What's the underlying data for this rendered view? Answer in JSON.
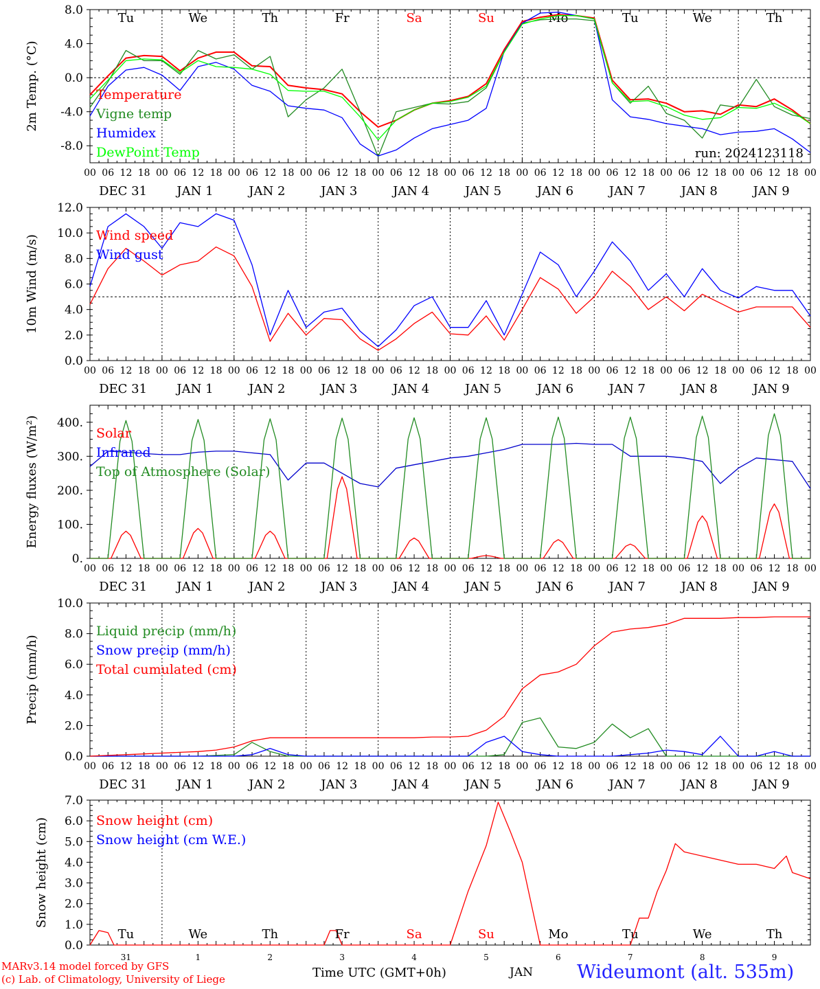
{
  "chart_data": [
    {
      "type": "line",
      "ylabel": "2m Temp. (°C)",
      "ylim": [
        -10,
        8
      ],
      "yticks": [
        8,
        4,
        0,
        -4,
        -8
      ],
      "ytick_labels": [
        "8.0",
        "4.0",
        "0.0",
        "-4.0",
        "-8.0"
      ],
      "zero_line": 0,
      "day_names": [
        "Tu",
        "We",
        "Th",
        "Fr",
        "Sa",
        "Su",
        "Mo",
        "Tu",
        "We",
        "Th"
      ],
      "weekend_color": "#ff0000",
      "annotation": "run: 2024123118",
      "x_hours": [
        0,
        6,
        12,
        18,
        24,
        30,
        36,
        42,
        48,
        54,
        60,
        66,
        72,
        78,
        84,
        90,
        96,
        102,
        108,
        114,
        120,
        126,
        132,
        138,
        144,
        150,
        156,
        162,
        168,
        174,
        180,
        186,
        192,
        198,
        204,
        210,
        216,
        222,
        228,
        234,
        240
      ],
      "series": [
        {
          "name": "Temperature",
          "color": "#ff0000",
          "values": [
            -2,
            0.2,
            2.3,
            2.6,
            2.5,
            0.8,
            2.3,
            3.0,
            3.0,
            1.4,
            1.3,
            -0.9,
            -1.2,
            -1.4,
            -1.9,
            -4.0,
            -5.8,
            -5.0,
            -3.8,
            -3.0,
            -2.7,
            -2.2,
            -0.7,
            3.3,
            6.6,
            7.1,
            7.4,
            7.3,
            7.0,
            -0.3,
            -2.6,
            -2.5,
            -3.0,
            -4.0,
            -3.9,
            -4.3,
            -3.2,
            -3.4,
            -2.5,
            -3.8,
            -5.4
          ]
        },
        {
          "name": "Vigne temp",
          "color": "#228b22",
          "values": [
            -3.5,
            -0.5,
            3.2,
            2.0,
            2.0,
            0.4,
            3.2,
            2.2,
            2.7,
            1.0,
            2.5,
            -4.6,
            -2.6,
            -1.2,
            1.0,
            -4.0,
            -9.3,
            -4.0,
            -3.5,
            -3.0,
            -3.1,
            -2.8,
            -1.2,
            3.0,
            6.4,
            6.8,
            6.9,
            6.9,
            6.7,
            -0.6,
            -3.0,
            -1.0,
            -4.2,
            -5.0,
            -7.1,
            -3.2,
            -3.5,
            -0.2,
            -3.4,
            -4.4,
            -4.8
          ]
        },
        {
          "name": "Humidex",
          "color": "#0000ff",
          "values": [
            -4.5,
            -1.0,
            0.9,
            1.2,
            0.3,
            -1.5,
            1.3,
            1.8,
            1.0,
            -0.9,
            -1.6,
            -3.3,
            -3.6,
            -3.8,
            -4.7,
            -7.8,
            -9.2,
            -8.5,
            -7.1,
            -6.0,
            -5.5,
            -5.0,
            -3.6,
            3.1,
            6.4,
            7.6,
            7.7,
            7.3,
            6.9,
            -2.6,
            -4.6,
            -4.9,
            -5.4,
            -5.7,
            -6.0,
            -6.7,
            -6.4,
            -6.3,
            -6.0,
            -7.2,
            -8.8
          ]
        },
        {
          "name": "DewPoint Temp",
          "color": "#00ff00",
          "values": [
            -2.5,
            -0.3,
            2.0,
            2.2,
            2.1,
            0.6,
            2.0,
            1.3,
            1.2,
            1.0,
            0.4,
            -1.5,
            -1.6,
            -1.6,
            -2.3,
            -4.6,
            -7.3,
            -5.0,
            -3.8,
            -3.0,
            -2.8,
            -2.3,
            -1.0,
            3.0,
            6.3,
            6.9,
            7.3,
            7.3,
            6.9,
            -0.6,
            -2.8,
            -2.7,
            -3.4,
            -4.4,
            -4.9,
            -4.7,
            -3.5,
            -3.6,
            -3.0,
            -4.0,
            -5.4
          ]
        }
      ]
    },
    {
      "type": "line",
      "ylabel": "10m Wind (m/s)",
      "ylim": [
        0,
        12
      ],
      "yticks": [
        12,
        10,
        8,
        6,
        4,
        2,
        0
      ],
      "ytick_labels": [
        "12.0",
        "10.0",
        "8.0",
        "6.0",
        "4.0",
        "2.0",
        "0.0"
      ],
      "ref_line": 5,
      "x_hours": [
        0,
        6,
        12,
        18,
        24,
        30,
        36,
        42,
        48,
        54,
        60,
        66,
        72,
        78,
        84,
        90,
        96,
        102,
        108,
        114,
        120,
        126,
        132,
        138,
        144,
        150,
        156,
        162,
        168,
        174,
        180,
        186,
        192,
        198,
        204,
        210,
        216,
        222,
        228,
        234,
        240
      ],
      "series": [
        {
          "name": "Wind speed",
          "color": "#ff0000",
          "values": [
            4.4,
            7.2,
            8.8,
            7.8,
            6.7,
            7.5,
            7.8,
            8.9,
            8.2,
            5.8,
            1.5,
            3.7,
            2.0,
            3.3,
            3.2,
            1.7,
            0.8,
            1.7,
            2.9,
            3.8,
            2.1,
            2.0,
            3.5,
            1.6,
            4.0,
            6.5,
            5.6,
            3.7,
            5.0,
            7.0,
            5.8,
            4.0,
            5.0,
            3.9,
            5.2,
            4.5,
            3.8,
            4.2,
            4.2,
            4.2,
            2.6
          ]
        },
        {
          "name": "Wind gust",
          "color": "#0000ff",
          "values": [
            5.8,
            10.5,
            11.5,
            10.5,
            8.8,
            10.8,
            10.5,
            11.5,
            11.0,
            7.5,
            2.0,
            5.5,
            2.6,
            3.8,
            4.1,
            2.3,
            1.1,
            2.4,
            4.3,
            5.0,
            2.6,
            2.6,
            4.7,
            2.0,
            5.2,
            8.5,
            7.5,
            5.0,
            7.0,
            9.3,
            7.8,
            5.5,
            6.8,
            5.0,
            7.2,
            5.5,
            4.9,
            5.8,
            5.5,
            5.5,
            3.5
          ]
        }
      ]
    },
    {
      "type": "line",
      "ylabel": "Energy fluxes (W/m²)",
      "ylim": [
        0,
        450
      ],
      "yticks": [
        400,
        300,
        200,
        100,
        0
      ],
      "ytick_labels": [
        "400.",
        "300.",
        "200.",
        "100.",
        "0."
      ],
      "solar_peaks": [
        80,
        88,
        80,
        240,
        60,
        8,
        55,
        42,
        125,
        160
      ],
      "toa_peaks": [
        405,
        408,
        410,
        412,
        413,
        413,
        415,
        415,
        418,
        425
      ],
      "series": [
        {
          "name": "Solar",
          "color": "#ff0000"
        },
        {
          "name": "Infrared",
          "color": "#0000cc",
          "x_hours": [
            0,
            6,
            12,
            18,
            24,
            30,
            36,
            42,
            48,
            54,
            60,
            66,
            72,
            78,
            84,
            90,
            96,
            102,
            108,
            114,
            120,
            126,
            132,
            138,
            144,
            150,
            156,
            162,
            168,
            174,
            180,
            186,
            192,
            198,
            204,
            210,
            216,
            222,
            228,
            234,
            240
          ],
          "values": [
            270,
            315,
            312,
            308,
            305,
            305,
            312,
            315,
            315,
            310,
            305,
            230,
            280,
            280,
            250,
            220,
            210,
            265,
            275,
            285,
            295,
            300,
            310,
            320,
            335,
            335,
            335,
            338,
            335,
            335,
            300,
            300,
            300,
            295,
            285,
            220,
            265,
            295,
            290,
            285,
            205
          ]
        },
        {
          "name": "Top of Atmosphere (Solar)",
          "color": "#228b22"
        }
      ]
    },
    {
      "type": "line",
      "ylabel": "Precip (mm/h)",
      "ylim": [
        0,
        10
      ],
      "yticks": [
        10,
        8,
        6,
        4,
        2,
        0
      ],
      "ytick_labels": [
        "10.0",
        "8.0",
        "6.0",
        "4.0",
        "2.0",
        "0.0"
      ],
      "x_hours": [
        0,
        6,
        12,
        18,
        24,
        30,
        36,
        42,
        48,
        54,
        60,
        66,
        72,
        78,
        84,
        90,
        96,
        102,
        108,
        114,
        120,
        126,
        132,
        138,
        144,
        150,
        156,
        162,
        168,
        174,
        180,
        186,
        192,
        198,
        204,
        210,
        216,
        222,
        228,
        234,
        240
      ],
      "series": [
        {
          "name": "Liquid precip (mm/h)",
          "color": "#228b22",
          "values": [
            0,
            0,
            0,
            0,
            0,
            0,
            0,
            0.05,
            0.1,
            0.9,
            0.3,
            0,
            0,
            0,
            0,
            0,
            0,
            0,
            0,
            0,
            0,
            0,
            0,
            0.1,
            2.2,
            2.5,
            0.6,
            0.5,
            0.9,
            2.1,
            1.2,
            1.8,
            0,
            0,
            0,
            0,
            0,
            0,
            0,
            0,
            0
          ]
        },
        {
          "name": "Snow precip (mm/h)",
          "color": "#0000ff",
          "values": [
            0,
            0,
            0,
            0,
            0,
            0,
            0,
            0,
            0,
            0.1,
            0.5,
            0.1,
            0,
            0,
            0,
            0,
            0,
            0,
            0,
            0,
            0,
            0,
            0.9,
            1.3,
            0.3,
            0.1,
            0,
            0,
            0,
            0,
            0.1,
            0.2,
            0.4,
            0.3,
            0.1,
            1.3,
            0,
            0,
            0.3,
            0,
            0
          ]
        },
        {
          "name": "Total cumulated (cm)",
          "color": "#ff0000",
          "values": [
            0,
            0.05,
            0.1,
            0.15,
            0.2,
            0.25,
            0.3,
            0.4,
            0.6,
            1.0,
            1.2,
            1.2,
            1.2,
            1.2,
            1.2,
            1.2,
            1.2,
            1.2,
            1.2,
            1.25,
            1.25,
            1.3,
            1.7,
            2.6,
            4.4,
            5.3,
            5.5,
            6.0,
            7.2,
            8.1,
            8.3,
            8.4,
            8.6,
            9.0,
            9.0,
            9.0,
            9.05,
            9.05,
            9.1,
            9.1,
            9.1
          ]
        }
      ]
    },
    {
      "type": "line",
      "ylabel": "Snow height (cm)",
      "ylim": [
        0,
        7
      ],
      "yticks": [
        7,
        6,
        5,
        4,
        3,
        2,
        1,
        0
      ],
      "ytick_labels": [
        "7.0",
        "6.0",
        "5.0",
        "4.0",
        "3.0",
        "2.0",
        "1.0",
        "0.0"
      ],
      "x_hours": [
        0,
        3,
        6,
        8,
        12,
        24,
        48,
        78,
        80,
        82,
        84,
        96,
        120,
        126,
        132,
        136,
        140,
        144,
        150,
        168,
        180,
        183,
        186,
        189,
        192,
        195,
        198,
        204,
        210,
        216,
        222,
        228,
        232,
        234,
        240
      ],
      "series": [
        {
          "name": "Snow height (cm)",
          "color": "#ff0000",
          "values": [
            0,
            0.7,
            0.6,
            0,
            0,
            0,
            0,
            0,
            0.7,
            0.7,
            0,
            0,
            0,
            2.6,
            4.8,
            6.9,
            5.5,
            4.0,
            0,
            0,
            0,
            1.3,
            1.3,
            2.6,
            3.6,
            4.9,
            4.5,
            4.3,
            4.1,
            3.9,
            3.9,
            3.7,
            4.3,
            3.5,
            3.2
          ]
        },
        {
          "name": "Snow height (cm W.E.)",
          "color": "#0000ff"
        }
      ],
      "day_names": [
        "Tu",
        "We",
        "Th",
        "Fr",
        "Sa",
        "Su",
        "Mo",
        "Tu",
        "We",
        "Th"
      ],
      "day_numbers": [
        "31",
        "1",
        "2",
        "3",
        "4",
        "5",
        "6",
        "7",
        "8",
        "9"
      ],
      "month": "JAN"
    }
  ],
  "x_axis": {
    "hour_labels": [
      "00",
      "06",
      "12",
      "18"
    ],
    "date_labels": [
      "DEC 31",
      "JAN  1",
      "JAN  2",
      "JAN  3",
      "JAN  4",
      "JAN  5",
      "JAN  6",
      "JAN  7",
      "JAN  8",
      "JAN  9"
    ],
    "xlabel": "Time UTC (GMT+0h)"
  },
  "footer": {
    "model_line": "MARv3.14 model forced by GFS",
    "credit_line": "(c) Lab. of Climatology, University of Liege",
    "station": "Wideumont (alt. 535m)",
    "xlabel": "Time UTC (GMT+0h)",
    "month": "JAN"
  }
}
